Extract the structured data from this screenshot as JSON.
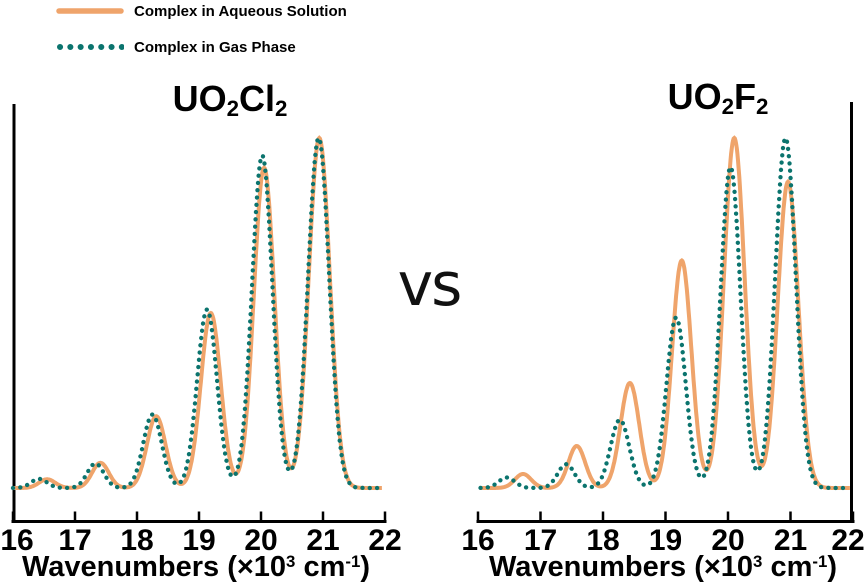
{
  "vs_label": "vs",
  "colors": {
    "aqueous": "#EFA46B",
    "gas": "#0B746E",
    "axis": "#000000",
    "background": "#ffffff"
  },
  "legend": {
    "position": "top-left",
    "items": [
      {
        "label": "Complex in Aqueous Solution",
        "line_style": "solid",
        "color": "#EFA46B"
      },
      {
        "label": "Complex in Gas Phase",
        "line_style": "dotted",
        "color": "#0B746E"
      }
    ]
  },
  "chart_data": [
    {
      "type": "line",
      "title": "UO₂Cl₂",
      "title_parts": [
        {
          "t": "UO"
        },
        {
          "t": "2",
          "sub": true
        },
        {
          "t": "Cl"
        },
        {
          "t": "2",
          "sub": true
        }
      ],
      "xlabel": "Wavenumbers (×10³ cm⁻¹)",
      "xlabel_parts": [
        {
          "t": "Wavenumbers (×10"
        },
        {
          "t": "3",
          "sup": true
        },
        {
          "t": " cm"
        },
        {
          "t": "-1",
          "sup": true
        },
        {
          "t": ")"
        }
      ],
      "ylabel": "",
      "y_scale": "relative intensity (unlabeled axis, max = 1)",
      "xlim": [
        16,
        22
      ],
      "x_ticks": [
        16,
        17,
        18,
        19,
        20,
        21,
        22
      ],
      "grid": false,
      "y_axis_side": "left",
      "model": "sum_of_gaussians",
      "series": [
        {
          "name": "Complex in Aqueous Solution",
          "color": "#EFA46B",
          "line_style": "solid",
          "peaks": [
            {
              "center": 16.55,
              "height": 0.025,
              "sigma": 0.13
            },
            {
              "center": 17.41,
              "height": 0.072,
              "sigma": 0.135
            },
            {
              "center": 18.31,
              "height": 0.205,
              "sigma": 0.15
            },
            {
              "center": 19.19,
              "height": 0.5,
              "sigma": 0.16
            },
            {
              "center": 20.05,
              "height": 0.915,
              "sigma": 0.165
            },
            {
              "center": 20.94,
              "height": 1.0,
              "sigma": 0.17
            }
          ]
        },
        {
          "name": "Complex in Gas Phase",
          "color": "#0B746E",
          "line_style": "dotted",
          "peaks": [
            {
              "center": 16.42,
              "height": 0.026,
              "sigma": 0.13
            },
            {
              "center": 17.33,
              "height": 0.07,
              "sigma": 0.135
            },
            {
              "center": 18.25,
              "height": 0.21,
              "sigma": 0.15
            },
            {
              "center": 19.13,
              "height": 0.51,
              "sigma": 0.16
            },
            {
              "center": 20.02,
              "height": 0.95,
              "sigma": 0.165
            },
            {
              "center": 20.93,
              "height": 1.0,
              "sigma": 0.17
            }
          ]
        }
      ]
    },
    {
      "type": "line",
      "title": "UO₂F₂",
      "title_parts": [
        {
          "t": "UO"
        },
        {
          "t": "2",
          "sub": true
        },
        {
          "t": "F"
        },
        {
          "t": "2",
          "sub": true
        }
      ],
      "xlabel": "Wavenumbers (×10³ cm⁻¹)",
      "xlabel_parts": [
        {
          "t": "Wavenumbers (×10"
        },
        {
          "t": "3",
          "sup": true
        },
        {
          "t": " cm"
        },
        {
          "t": "-1",
          "sup": true
        },
        {
          "t": ")"
        }
      ],
      "ylabel": "",
      "y_scale": "relative intensity (unlabeled axis, max = 1)",
      "xlim": [
        16,
        22
      ],
      "x_ticks": [
        16,
        17,
        18,
        19,
        20,
        21,
        22
      ],
      "grid": false,
      "y_axis_side": "right",
      "model": "sum_of_gaussians",
      "series": [
        {
          "name": "Complex in Aqueous Solution",
          "color": "#EFA46B",
          "line_style": "solid",
          "peaks": [
            {
              "center": 16.72,
              "height": 0.04,
              "sigma": 0.13
            },
            {
              "center": 17.58,
              "height": 0.12,
              "sigma": 0.135
            },
            {
              "center": 18.43,
              "height": 0.3,
              "sigma": 0.15
            },
            {
              "center": 19.26,
              "height": 0.65,
              "sigma": 0.155
            },
            {
              "center": 20.1,
              "height": 1.0,
              "sigma": 0.165
            },
            {
              "center": 20.96,
              "height": 0.875,
              "sigma": 0.165
            }
          ]
        },
        {
          "name": "Complex in Gas Phase",
          "color": "#0B746E",
          "line_style": "dotted",
          "peaks": [
            {
              "center": 16.46,
              "height": 0.03,
              "sigma": 0.13
            },
            {
              "center": 17.41,
              "height": 0.068,
              "sigma": 0.135
            },
            {
              "center": 18.27,
              "height": 0.195,
              "sigma": 0.15
            },
            {
              "center": 19.17,
              "height": 0.487,
              "sigma": 0.155
            },
            {
              "center": 20.04,
              "height": 0.917,
              "sigma": 0.16
            },
            {
              "center": 20.92,
              "height": 1.0,
              "sigma": 0.165
            }
          ]
        }
      ]
    }
  ]
}
